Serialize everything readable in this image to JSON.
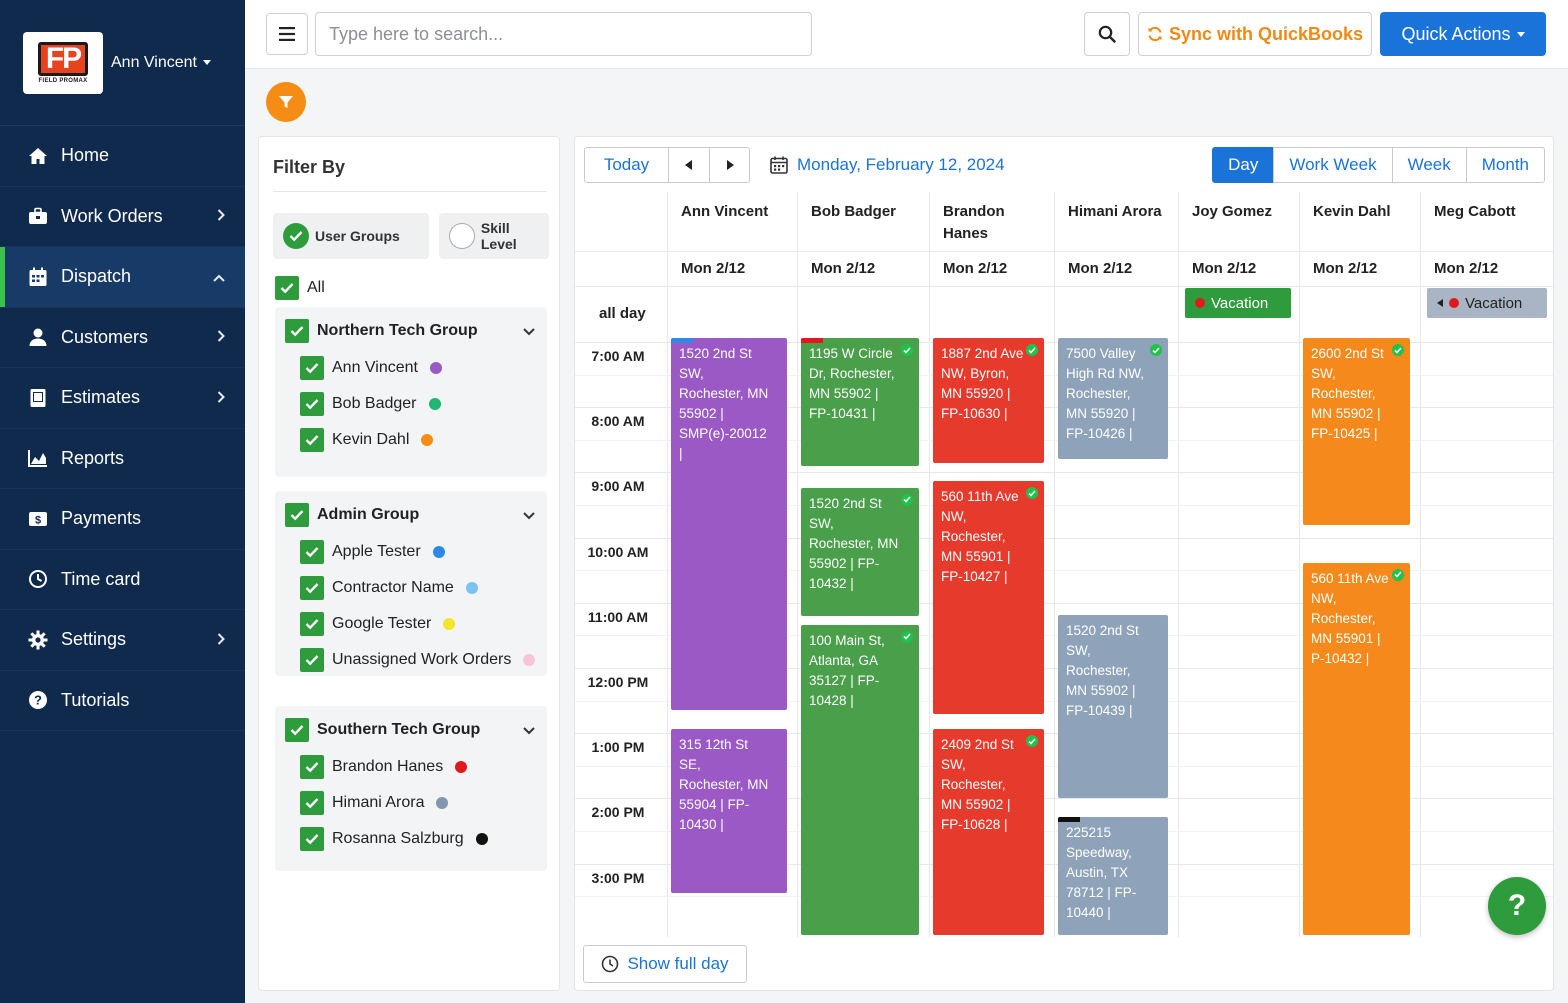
{
  "sidebar": {
    "logo_text": "FIELD PROMAX",
    "logo_mark": "FP",
    "user_name": "Ann Vincent",
    "items": [
      {
        "label": "Home",
        "icon": "home-icon",
        "has_chevron": false
      },
      {
        "label": "Work Orders",
        "icon": "toolbox-icon",
        "has_chevron": true
      },
      {
        "label": "Dispatch",
        "icon": "calendar-icon",
        "has_chevron": true
      },
      {
        "label": "Customers",
        "icon": "user-icon",
        "has_chevron": true
      },
      {
        "label": "Estimates",
        "icon": "document-icon",
        "has_chevron": true
      },
      {
        "label": "Reports",
        "icon": "chart-icon",
        "has_chevron": false
      },
      {
        "label": "Payments",
        "icon": "dollar-icon",
        "has_chevron": false
      },
      {
        "label": "Time card",
        "icon": "clock-icon",
        "has_chevron": false
      },
      {
        "label": "Settings",
        "icon": "gear-icon",
        "has_chevron": true
      },
      {
        "label": "Tutorials",
        "icon": "question-icon",
        "has_chevron": false
      }
    ],
    "active_item": "Dispatch"
  },
  "topbar": {
    "search_placeholder": "Type here to search...",
    "sync_label": "Sync with QuickBooks",
    "quick_actions_label": "Quick Actions"
  },
  "filter": {
    "title": "Filter By",
    "toggle_user_groups": "User Groups",
    "toggle_skill_level": "Skill Level",
    "all_label": "All",
    "groups": [
      {
        "name": "Northern Tech Group",
        "members": [
          {
            "name": "Ann Vincent",
            "color": "#9b59c6"
          },
          {
            "name": "Bob Badger",
            "color": "#22b573"
          },
          {
            "name": "Kevin Dahl",
            "color": "#f58c14"
          }
        ]
      },
      {
        "name": "Admin Group",
        "members": [
          {
            "name": "Apple Tester",
            "color": "#2a8ae6"
          },
          {
            "name": "Contractor Name",
            "color": "#7cc3f2"
          },
          {
            "name": "Google Tester",
            "color": "#f2e52a"
          },
          {
            "name": "Unassigned Work Orders",
            "color": "#f7c6d6"
          }
        ]
      },
      {
        "name": "Southern Tech Group",
        "members": [
          {
            "name": "Brandon Hanes",
            "color": "#e2191c"
          },
          {
            "name": "Himani Arora",
            "color": "#7f97b3"
          },
          {
            "name": "Rosanna Salzburg",
            "color": "#111111"
          }
        ]
      }
    ]
  },
  "calendar": {
    "today_label": "Today",
    "date_label": "Monday, February 12, 2024",
    "views": [
      "Day",
      "Work Week",
      "Week",
      "Month"
    ],
    "active_view": "Day",
    "all_day_label": "all day",
    "show_full_day_label": "Show full day",
    "resources": [
      {
        "name": "Ann Vincent",
        "date": "Mon 2/12"
      },
      {
        "name": "Bob Badger",
        "date": "Mon 2/12"
      },
      {
        "name": "Brandon Hanes",
        "date": "Mon 2/12"
      },
      {
        "name": "Himani Arora",
        "date": "Mon 2/12"
      },
      {
        "name": "Joy Gomez",
        "date": "Mon 2/12"
      },
      {
        "name": "Kevin Dahl",
        "date": "Mon 2/12"
      },
      {
        "name": "Meg Cabott",
        "date": "Mon 2/12"
      }
    ],
    "times": [
      "7:00 AM",
      "8:00 AM",
      "9:00 AM",
      "10:00 AM",
      "11:00 AM",
      "12:00 PM",
      "1:00 PM",
      "2:00 PM",
      "3:00 PM"
    ],
    "all_day_events": [
      {
        "resource": 4,
        "label": "Vacation",
        "color": "#2e9b3d"
      },
      {
        "resource": 6,
        "label": "Vacation",
        "color": "#a9b5c4"
      }
    ],
    "events": [
      {
        "resource": 0,
        "start": 7.0,
        "end": 12.65,
        "color": "#9b59c6",
        "text": "1520 2nd St SW, Rochester, MN 55902 | SMP(e)-20012 |",
        "done": false,
        "strip": "#2a8ae6"
      },
      {
        "resource": 0,
        "start": 13.0,
        "end": 15.45,
        "color": "#9b59c6",
        "text": "315 12th St SE, Rochester, MN 55904 | FP-10430 |",
        "done": false
      },
      {
        "resource": 1,
        "start": 7.0,
        "end": 8.9,
        "color": "#4a9f4a",
        "text": "1195 W Circle Dr, Rochester, MN 55902 | FP-10431 |",
        "done": true,
        "strip": "#e2191c"
      },
      {
        "resource": 1,
        "start": 9.3,
        "end": 11.2,
        "color": "#4a9f4a",
        "text": "1520 2nd St SW, Rochester, MN 55902 | FP-10432 |",
        "done": true
      },
      {
        "resource": 1,
        "start": 11.4,
        "end": 16.3,
        "color": "#4a9f4a",
        "text": "100 Main St, Atlanta, GA 35127 | FP-10428 |",
        "done": true
      },
      {
        "resource": 2,
        "start": 7.0,
        "end": 8.85,
        "color": "#e53a2c",
        "text": "1887 2nd Ave NW, Byron, MN 55920 | FP-10630 |",
        "done": true
      },
      {
        "resource": 2,
        "start": 9.2,
        "end": 12.7,
        "color": "#e53a2c",
        "text": "560 11th Ave NW, Rochester, MN 55901 | FP-10427 |",
        "done": true,
        "strike": true
      },
      {
        "resource": 2,
        "start": 13.0,
        "end": 16.3,
        "color": "#e53a2c",
        "text": "2409 2nd St SW, Rochester, MN 55902 | FP-10628 |",
        "done": true,
        "strike": true
      },
      {
        "resource": 3,
        "start": 7.0,
        "end": 8.8,
        "color": "#8ea3ba",
        "text": "7500 Valley High Rd NW, Rochester, MN 55920 | FP-10426 |",
        "done": true
      },
      {
        "resource": 3,
        "start": 11.25,
        "end": 14.0,
        "color": "#8ea3ba",
        "text": "1520 2nd St SW, Rochester, MN 55902 | FP-10439 |",
        "done": false
      },
      {
        "resource": 3,
        "start": 14.35,
        "end": 16.3,
        "color": "#8ea3ba",
        "text": "225215 Speedway, Austin, TX 78712 | FP-10440 |",
        "done": false,
        "strip": "#111111"
      },
      {
        "resource": 5,
        "start": 7.0,
        "end": 9.8,
        "color": "#f5891c",
        "text": "2600 2nd St SW, Rochester, MN 55902 | FP-10425 |",
        "done": true
      },
      {
        "resource": 5,
        "start": 10.45,
        "end": 16.3,
        "color": "#f5891c",
        "text": "560 11th Ave NW, Rochester, MN 55901 | P-10432 |",
        "done": true
      }
    ]
  },
  "help_label": "?"
}
